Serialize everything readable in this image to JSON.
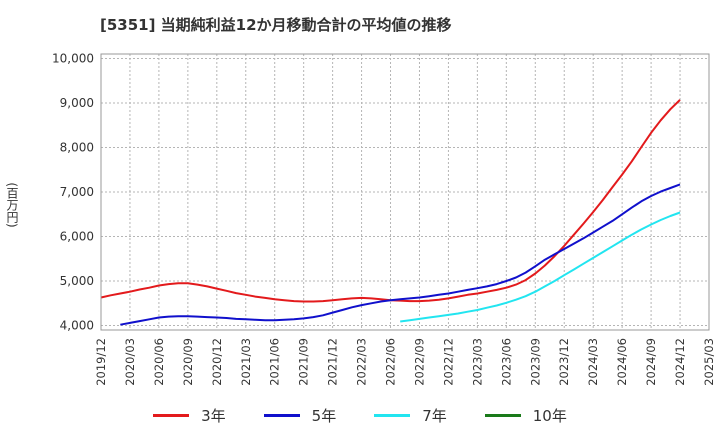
{
  "chart_data": {
    "type": "line",
    "title": "[5351]  当期純利益12か月移動合計の平均値の推移",
    "ylabel": "(百万円)",
    "xlabel": "",
    "ylim": [
      3900,
      10100
    ],
    "yticks": [
      "4,000",
      "5,000",
      "6,000",
      "7,000",
      "8,000",
      "9,000",
      "10,000"
    ],
    "ytick_values": [
      4000,
      5000,
      6000,
      7000,
      8000,
      9000,
      10000
    ],
    "xtick_labels": [
      "2019/12",
      "2020/03",
      "2020/06",
      "2020/09",
      "2020/12",
      "2021/03",
      "2021/06",
      "2021/09",
      "2021/12",
      "2022/03",
      "2022/06",
      "2022/09",
      "2022/12",
      "2023/03",
      "2023/06",
      "2023/09",
      "2023/12",
      "2024/03",
      "2024/06",
      "2024/09",
      "2024/12",
      "2025/03"
    ],
    "x_months": [
      "2019/12",
      "2020/01",
      "2020/02",
      "2020/03",
      "2020/04",
      "2020/05",
      "2020/06",
      "2020/07",
      "2020/08",
      "2020/09",
      "2020/10",
      "2020/11",
      "2020/12",
      "2021/01",
      "2021/02",
      "2021/03",
      "2021/04",
      "2021/05",
      "2021/06",
      "2021/07",
      "2021/08",
      "2021/09",
      "2021/10",
      "2021/11",
      "2021/12",
      "2022/01",
      "2022/02",
      "2022/03",
      "2022/04",
      "2022/05",
      "2022/06",
      "2022/07",
      "2022/08",
      "2022/09",
      "2022/10",
      "2022/11",
      "2022/12",
      "2023/01",
      "2023/02",
      "2023/03",
      "2023/04",
      "2023/05",
      "2023/06",
      "2023/07",
      "2023/08",
      "2023/09",
      "2023/10",
      "2023/11",
      "2023/12",
      "2024/01",
      "2024/02",
      "2024/03",
      "2024/04",
      "2024/05",
      "2024/06",
      "2024/07",
      "2024/08",
      "2024/09",
      "2024/10",
      "2024/11",
      "2024/12"
    ],
    "grid": true,
    "legend_position": "bottom",
    "series": [
      {
        "name": "3年",
        "color": "#e31a1c",
        "values": [
          4630,
          4680,
          4720,
          4760,
          4810,
          4850,
          4900,
          4930,
          4950,
          4950,
          4920,
          4880,
          4830,
          4780,
          4730,
          4690,
          4650,
          4620,
          4590,
          4570,
          4550,
          4540,
          4540,
          4550,
          4570,
          4590,
          4610,
          4620,
          4610,
          4590,
          4570,
          4560,
          4550,
          4550,
          4560,
          4580,
          4610,
          4650,
          4690,
          4720,
          4760,
          4800,
          4850,
          4920,
          5020,
          5170,
          5350,
          5560,
          5790,
          6040,
          6290,
          6550,
          6820,
          7110,
          7390,
          7690,
          8010,
          8330,
          8610,
          8860,
          9070
        ]
      },
      {
        "name": "5年",
        "color": "#1010cc",
        "values": [
          null,
          null,
          4020,
          4060,
          4100,
          4140,
          4180,
          4200,
          4210,
          4210,
          4200,
          4190,
          4180,
          4170,
          4150,
          4140,
          4130,
          4120,
          4120,
          4130,
          4140,
          4160,
          4190,
          4230,
          4290,
          4350,
          4410,
          4460,
          4500,
          4540,
          4570,
          4590,
          4610,
          4630,
          4660,
          4690,
          4720,
          4760,
          4800,
          4840,
          4880,
          4930,
          5000,
          5080,
          5190,
          5330,
          5480,
          5600,
          5720,
          5840,
          5960,
          6090,
          6220,
          6350,
          6500,
          6650,
          6790,
          6910,
          7010,
          7090,
          7170
        ]
      },
      {
        "name": "7年",
        "color": "#22e5f0",
        "values": [
          null,
          null,
          null,
          null,
          null,
          null,
          null,
          null,
          null,
          null,
          null,
          null,
          null,
          null,
          null,
          null,
          null,
          null,
          null,
          null,
          null,
          null,
          null,
          null,
          null,
          null,
          null,
          null,
          null,
          null,
          null,
          4090,
          4120,
          4150,
          4180,
          4210,
          4240,
          4270,
          4310,
          4350,
          4400,
          4450,
          4510,
          4580,
          4660,
          4760,
          4880,
          5000,
          5130,
          5260,
          5390,
          5520,
          5650,
          5780,
          5910,
          6040,
          6160,
          6270,
          6370,
          6460,
          6540
        ]
      },
      {
        "name": "10年",
        "color": "#1a7a1a",
        "values": []
      }
    ]
  }
}
